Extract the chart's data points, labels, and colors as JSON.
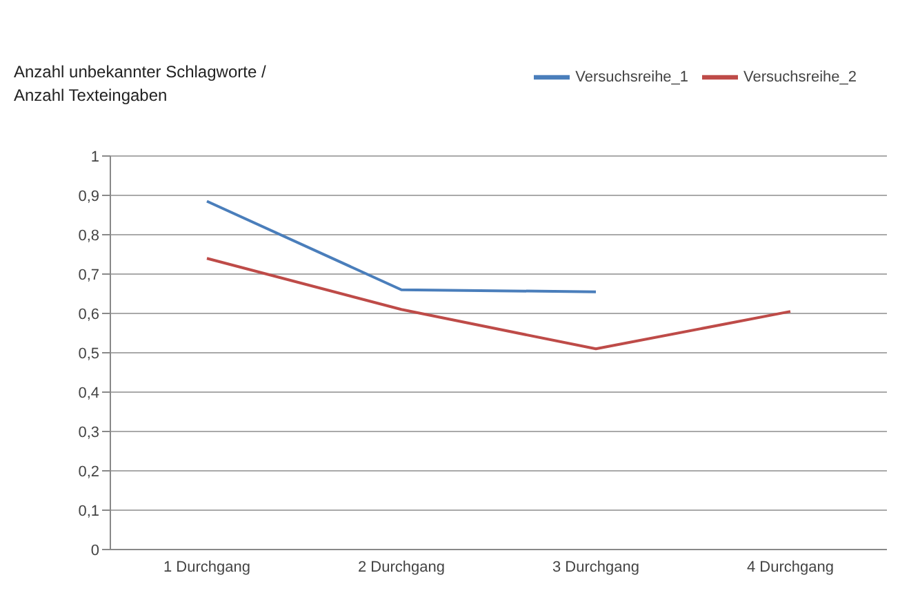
{
  "chart_data": {
    "type": "line",
    "ylabel": "Anzahl  unbekannter Schlagworte / Anzahl Texteingaben",
    "categories": [
      "1 Durchgang",
      "2 Durchgang",
      "3 Durchgang",
      "4 Durchgang"
    ],
    "series": [
      {
        "name": "Versuchsreihe_1",
        "color": "#4a7ebb",
        "values": [
          0.885,
          0.66,
          0.655,
          null
        ]
      },
      {
        "name": "Versuchsreihe_2",
        "color": "#be4b48",
        "values": [
          0.74,
          0.61,
          0.51,
          0.605
        ]
      }
    ],
    "ylim": [
      0,
      1
    ],
    "yticks": [
      0,
      {
        "value": 0.1,
        "label": "0,1"
      },
      {
        "value": 0.2,
        "label": "0,2"
      },
      {
        "value": 0.3,
        "label": "0,3"
      },
      {
        "value": 0.4,
        "label": "0,4"
      },
      {
        "value": 0.5,
        "label": "0,5"
      },
      {
        "value": 0.6,
        "label": "0,6"
      },
      {
        "value": 0.7,
        "label": "0,7"
      },
      {
        "value": 0.8,
        "label": "0,8"
      },
      {
        "value": 0.9,
        "label": "0,9"
      },
      1
    ],
    "grid": "y",
    "legend": "top right",
    "marker": "none",
    "line_style": "solid"
  }
}
